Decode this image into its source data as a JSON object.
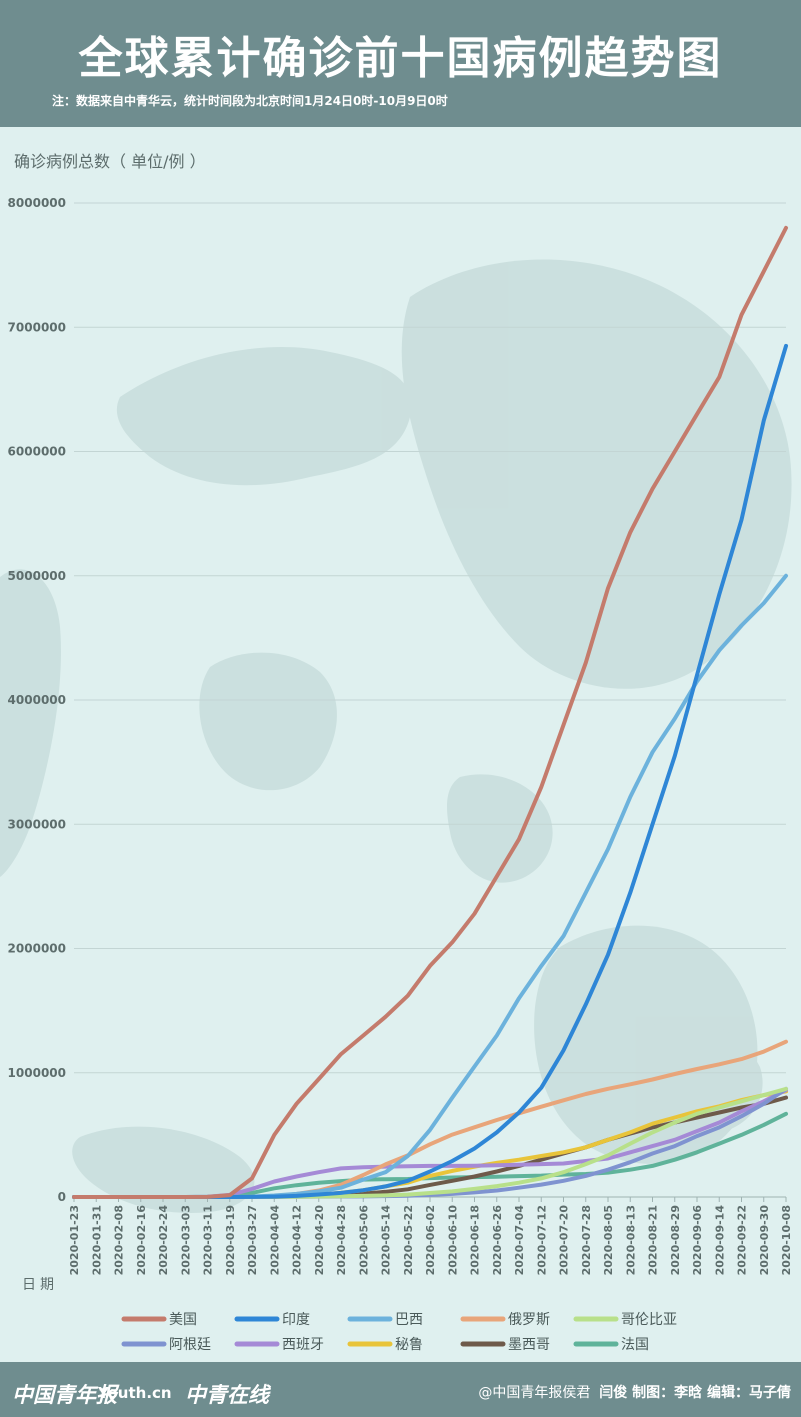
{
  "header": {
    "title": "全球累计确诊前十国病例趋势图",
    "note": "注：数据来自中青华云，统计时间段为北京时间1月24日0时-10月9日0时"
  },
  "footer": {
    "logos": [
      "中国青年报",
      "Youth.cn",
      "中青在线"
    ],
    "weibo": "@中国青年报侯君",
    "credits": "闫俊  制图：李晗  编辑：马子倩"
  },
  "colors": {
    "header_bg": "#6f8d8f",
    "background": "#dff0ef",
    "美国": "#c47b6c",
    "印度": "#2e86d6",
    "巴西": "#6cb2dc",
    "俄罗斯": "#e8a57a",
    "哥伦比亚": "#b8e08a",
    "阿根廷": "#7f93d0",
    "西班牙": "#a58ad6",
    "秘鲁": "#e8c43a",
    "墨西哥": "#6e5a4a",
    "法国": "#5fb39a"
  },
  "chart_data": {
    "type": "line",
    "ylabel": "确诊病例总数（ 单位/例 ）",
    "xlabel": "日期",
    "ylim": [
      0,
      8000000
    ],
    "yticks": [
      "0",
      "1000000",
      "2000000",
      "3000000",
      "4000000",
      "5000000",
      "6000000",
      "7000000",
      "8000000"
    ],
    "grid": true,
    "legend_position": "bottom",
    "x": [
      "2020-01-23",
      "2020-01-31",
      "2020-02-08",
      "2020-02-16",
      "2020-02-24",
      "2020-03-03",
      "2020-03-11",
      "2020-03-19",
      "2020-03-27",
      "2020-04-04",
      "2020-04-12",
      "2020-04-20",
      "2020-04-28",
      "2020-05-06",
      "2020-05-14",
      "2020-05-22",
      "2020-06-02",
      "2020-06-10",
      "2020-06-18",
      "2020-06-26",
      "2020-07-04",
      "2020-07-12",
      "2020-07-20",
      "2020-07-28",
      "2020-08-05",
      "2020-08-13",
      "2020-08-21",
      "2020-08-29",
      "2020-09-06",
      "2020-09-14",
      "2020-09-22",
      "2020-09-30",
      "2020-10-08"
    ],
    "series": [
      {
        "name": "美国",
        "values": [
          5,
          8,
          12,
          15,
          18,
          150,
          1200,
          15000,
          150000,
          500000,
          750000,
          950000,
          1150000,
          1300000,
          1450000,
          1620000,
          1860000,
          2050000,
          2280000,
          2580000,
          2880000,
          3300000,
          3800000,
          4300000,
          4900000,
          5350000,
          5700000,
          6000000,
          6300000,
          6600000,
          7100000,
          7450000,
          7800000
        ]
      },
      {
        "name": "印度",
        "values": [
          0,
          1,
          3,
          3,
          3,
          5,
          70,
          250,
          900,
          3500,
          9000,
          20000,
          33000,
          55000,
          85000,
          130000,
          205000,
          290000,
          390000,
          520000,
          680000,
          880000,
          1180000,
          1550000,
          1950000,
          2450000,
          3000000,
          3550000,
          4200000,
          4850000,
          5450000,
          6250000,
          6850000
        ]
      },
      {
        "name": "巴西",
        "values": [
          0,
          0,
          0,
          0,
          0,
          2,
          50,
          600,
          3000,
          12000,
          25000,
          45000,
          75000,
          140000,
          200000,
          330000,
          540000,
          800000,
          1050000,
          1300000,
          1600000,
          1860000,
          2100000,
          2450000,
          2800000,
          3220000,
          3580000,
          3850000,
          4150000,
          4400000,
          4600000,
          4780000,
          5000000
        ]
      },
      {
        "name": "俄罗斯",
        "values": [
          0,
          2,
          2,
          2,
          2,
          3,
          30,
          200,
          1200,
          5500,
          24000,
          52000,
          99000,
          177000,
          262000,
          335000,
          424000,
          502000,
          561000,
          620000,
          674000,
          727000,
          778000,
          829000,
          871000,
          907000,
          946000,
          990000,
          1030000,
          1068000,
          1110000,
          1170000,
          1250000
        ]
      },
      {
        "name": "哥伦比亚",
        "values": [
          0,
          0,
          0,
          0,
          0,
          0,
          10,
          100,
          500,
          1500,
          2800,
          4000,
          6000,
          9000,
          13000,
          19000,
          32000,
          45000,
          65000,
          88000,
          115000,
          150000,
          200000,
          265000,
          335000,
          430000,
          520000,
          600000,
          670000,
          720000,
          770000,
          820000,
          870000
        ]
      },
      {
        "name": "阿根廷",
        "values": [
          0,
          0,
          0,
          0,
          0,
          1,
          20,
          100,
          600,
          1500,
          2200,
          3000,
          4000,
          5000,
          7000,
          10000,
          17000,
          25000,
          37000,
          52000,
          75000,
          100000,
          130000,
          170000,
          220000,
          280000,
          350000,
          410000,
          490000,
          560000,
          650000,
          750000,
          870000
        ]
      },
      {
        "name": "西班牙",
        "values": [
          0,
          0,
          0,
          2,
          2,
          170,
          2200,
          17000,
          65000,
          125000,
          165000,
          200000,
          230000,
          240000,
          245000,
          248000,
          250000,
          250000,
          252000,
          255000,
          260000,
          265000,
          270000,
          290000,
          310000,
          360000,
          410000,
          460000,
          530000,
          600000,
          690000,
          770000,
          860000
        ]
      },
      {
        "name": "秘鲁",
        "values": [
          0,
          0,
          0,
          0,
          0,
          0,
          15,
          200,
          600,
          1700,
          7500,
          17000,
          34000,
          55000,
          85000,
          115000,
          170000,
          210000,
          245000,
          275000,
          300000,
          330000,
          360000,
          400000,
          460000,
          520000,
          590000,
          640000,
          690000,
          730000,
          780000,
          820000,
          850000
        ]
      },
      {
        "name": "墨西哥",
        "values": [
          0,
          0,
          0,
          0,
          0,
          5,
          10,
          120,
          600,
          1900,
          4800,
          8800,
          17000,
          27000,
          42000,
          62000,
          97000,
          130000,
          165000,
          205000,
          250000,
          300000,
          350000,
          400000,
          460000,
          510000,
          560000,
          600000,
          640000,
          680000,
          720000,
          750000,
          800000
        ]
      },
      {
        "name": "法国",
        "values": [
          0,
          5,
          11,
          12,
          12,
          200,
          2300,
          11000,
          33000,
          70000,
          95000,
          114000,
          128000,
          140000,
          143000,
          145000,
          152000,
          157000,
          160000,
          163000,
          168000,
          172000,
          180000,
          185000,
          196000,
          220000,
          250000,
          300000,
          360000,
          430000,
          500000,
          580000,
          670000
        ]
      }
    ]
  }
}
